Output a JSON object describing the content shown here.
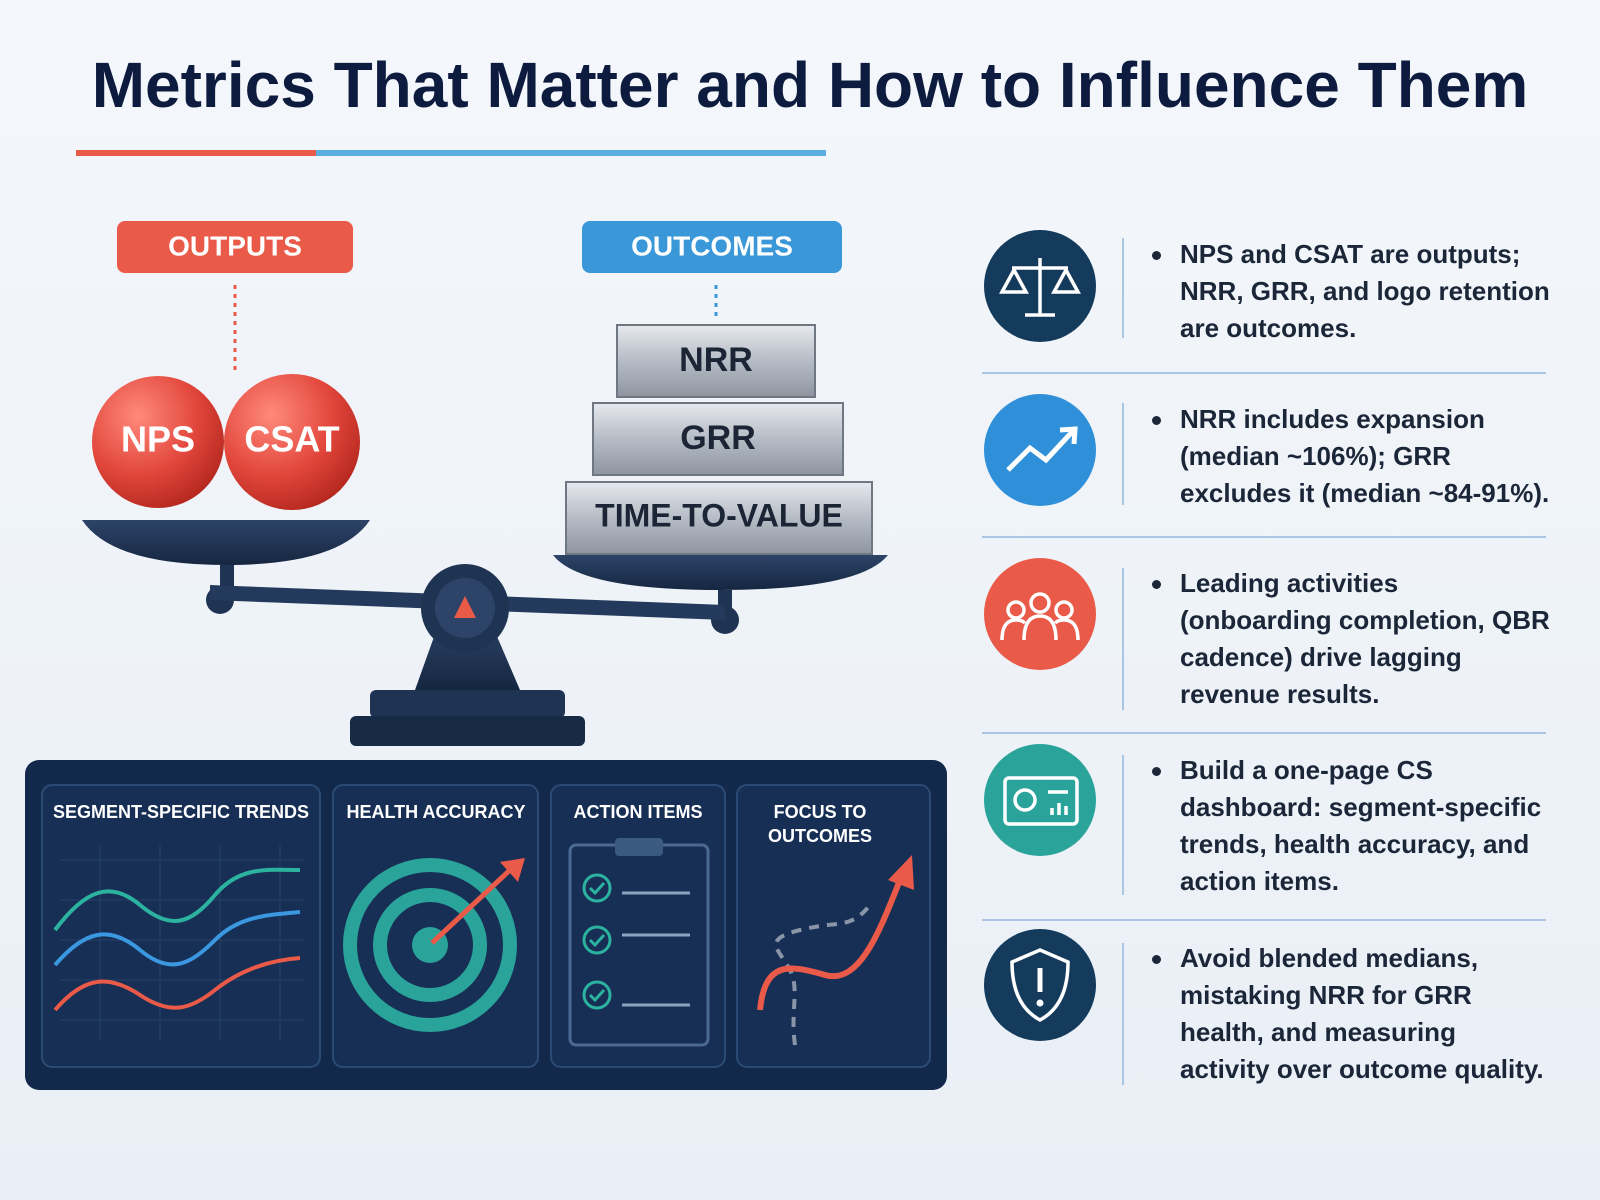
{
  "header": {
    "title": "Metrics That Matter and How to Influence Them"
  },
  "scale": {
    "outputs_label": "OUTPUTS",
    "outputs": [
      "NPS",
      "CSAT"
    ],
    "outcomes_label": "OUTCOMES",
    "outcomes": [
      "NRR",
      "GRR",
      "TIME-TO-VALUE"
    ]
  },
  "dashboard": {
    "panels": [
      "SEGMENT-SPECIFIC TRENDS",
      "HEALTH ACCURACY",
      "ACTION ITEMS",
      "FOCUS TO OUTCOMES"
    ]
  },
  "bullets": [
    "NPS and CSAT are outputs; NRR, GRR, and logo retention are outcomes.",
    "NRR includes expansion (median ~106%); GRR excludes it (median ~84-91%).",
    "Leading activities (onboarding completion, QBR cadence) drive lagging revenue results.",
    "Build a one-page CS dashboard: segment-specific trends, health accuracy, and action items.",
    "Avoid blended medians, mistaking NRR for GRR health, and measuring activity over outcome quality."
  ]
}
